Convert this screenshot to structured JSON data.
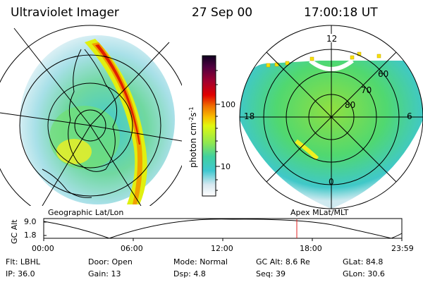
{
  "header": {
    "instrument": "Ultraviolet Imager",
    "date": "27 Sep 00",
    "time": "17:00:18 UT"
  },
  "geo_panel": {
    "caption": "Geographic Lat/Lon"
  },
  "apex_panel": {
    "caption": "Apex MLat/MLT",
    "mlt_labels": {
      "top": "12",
      "left": "18",
      "right": "6",
      "bottom": "0"
    },
    "mlat_labels": [
      "60",
      "70",
      "80"
    ]
  },
  "colorbar": {
    "unit": "photon cm",
    "unit_sup1": "-2",
    "unit_s": "s",
    "unit_sup2": "-1",
    "ticks": [
      "100",
      "10"
    ],
    "colors": [
      "#ffffff",
      "#d8e8f0",
      "#a0d8e0",
      "#40c8d0",
      "#30d0b0",
      "#60e060",
      "#a0f040",
      "#d8f820",
      "#f8f000",
      "#f8b000",
      "#f06000",
      "#e00000",
      "#b00020",
      "#700040",
      "#300040",
      "#100020"
    ]
  },
  "orbit_plot": {
    "ylabel": "GC Alt",
    "y_ticks": [
      "9.0",
      "1.8"
    ],
    "x_ticks": [
      "00:00",
      "06:00",
      "12:00",
      "18:00",
      "23:59"
    ],
    "marker_color": "#e02020"
  },
  "footer": {
    "row1": [
      {
        "k": "Flt:",
        "v": "LBHL"
      },
      {
        "k": "Door:",
        "v": "Open"
      },
      {
        "k": "Mode:",
        "v": "Normal"
      },
      {
        "k": "GC Alt:",
        "v": "8.6 Re"
      },
      {
        "k": "GLat:",
        "v": "84.8"
      }
    ],
    "row2": [
      {
        "k": "IP:",
        "v": "36.0"
      },
      {
        "k": "Gain:",
        "v": "13"
      },
      {
        "k": "Dsp:",
        "v": "4.8"
      },
      {
        "k": "Seq:",
        "v": "39"
      },
      {
        "k": "GLon:",
        "v": "30.6"
      }
    ]
  }
}
